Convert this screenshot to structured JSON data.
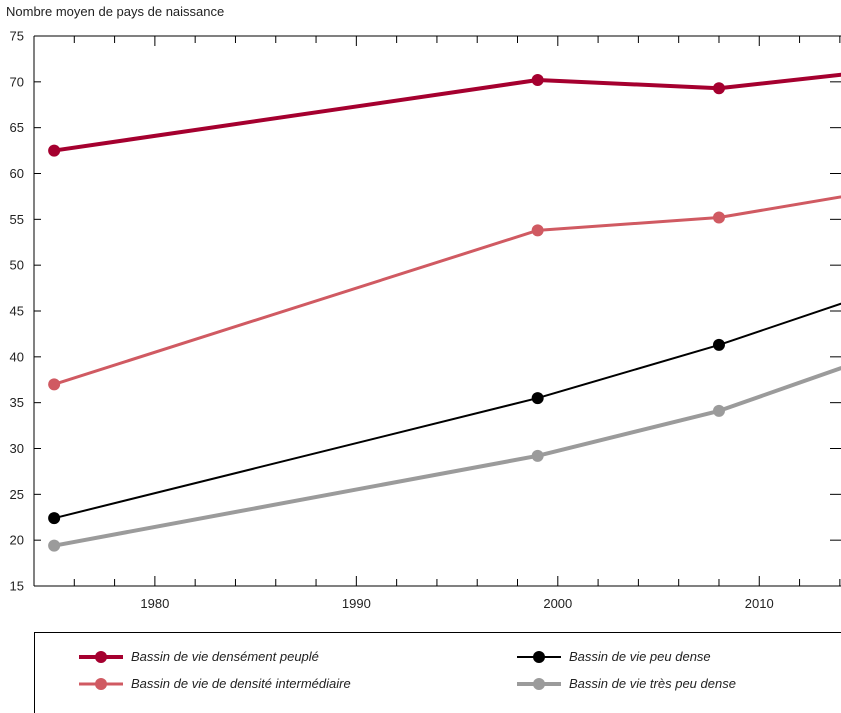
{
  "chart_data": {
    "type": "line",
    "ylabel": "Nombre moyen de pays de naissance",
    "xlabel": "",
    "xlim": [
      1974,
      2015
    ],
    "ylim": [
      15,
      75
    ],
    "xticks_major": [
      1980,
      1990,
      2000,
      2010
    ],
    "yticks": [
      15,
      20,
      25,
      30,
      35,
      40,
      45,
      50,
      55,
      60,
      65,
      70,
      75
    ],
    "grid": false,
    "legend_position": "bottom",
    "series": [
      {
        "name": "Bassin de vie densément peuplé",
        "color": "#a5002f",
        "x": [
          1975,
          1999,
          2008,
          2015
        ],
        "y": [
          62.5,
          70.2,
          69.3,
          71.0
        ]
      },
      {
        "name": "Bassin de vie de densité intermédiaire",
        "color": "#d05a62",
        "x": [
          1975,
          1999,
          2008,
          2015
        ],
        "y": [
          37.0,
          53.8,
          55.2,
          57.8
        ]
      },
      {
        "name": "Bassin de vie peu dense",
        "color": "#000000",
        "x": [
          1975,
          1999,
          2008,
          2015
        ],
        "y": [
          22.4,
          35.5,
          41.3,
          46.5
        ]
      },
      {
        "name": "Bassin de vie très peu dense",
        "color": "#9b9b9b",
        "x": [
          1975,
          1999,
          2008,
          2015
        ],
        "y": [
          19.4,
          29.2,
          34.1,
          39.5
        ]
      }
    ]
  }
}
